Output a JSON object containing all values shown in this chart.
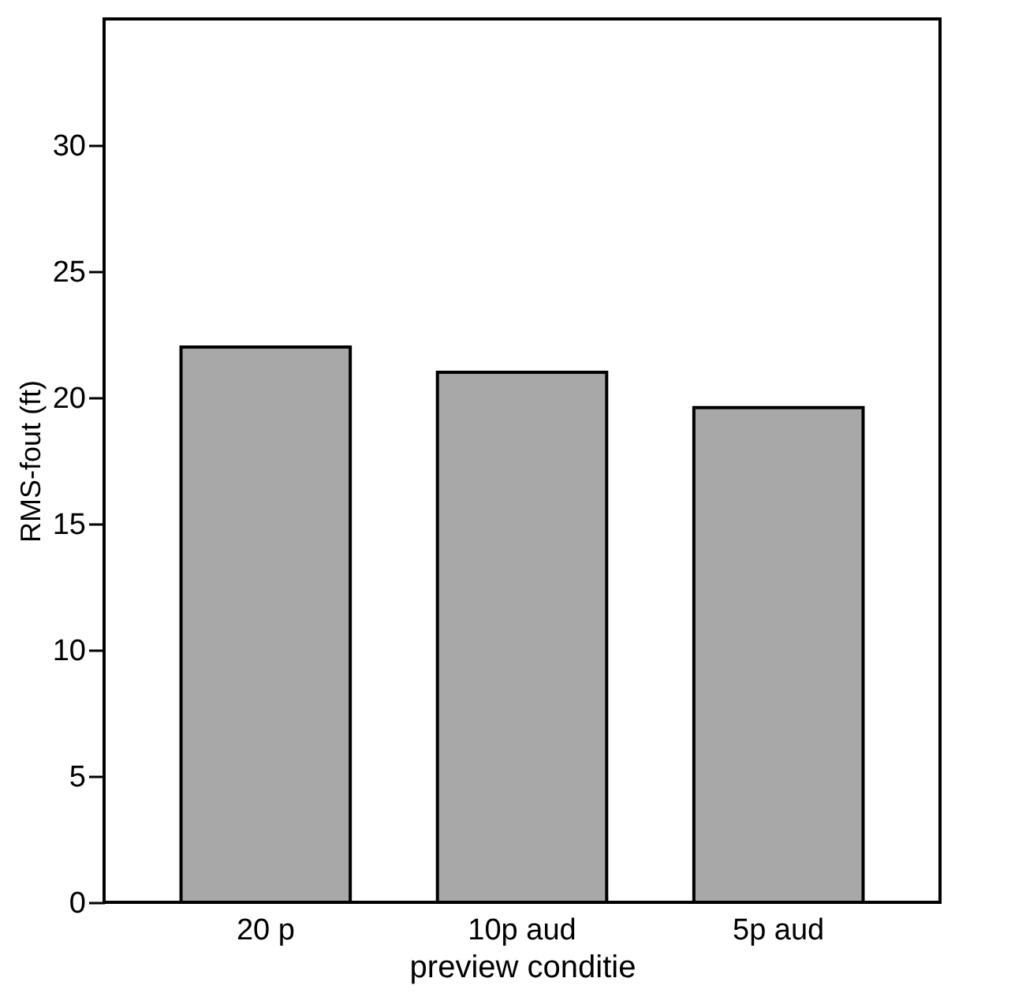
{
  "chart_data": {
    "type": "bar",
    "xlabel": "preview conditie",
    "ylabel": "RMS-fout (ft)",
    "categories": [
      "20 p",
      "10p aud",
      "5p aud"
    ],
    "values": [
      22,
      21,
      19.6
    ],
    "color": "#a8a8a8",
    "ylim": [
      0,
      35
    ],
    "yticks": [
      0,
      5,
      10,
      15,
      20,
      25,
      30
    ],
    "grid": false
  }
}
